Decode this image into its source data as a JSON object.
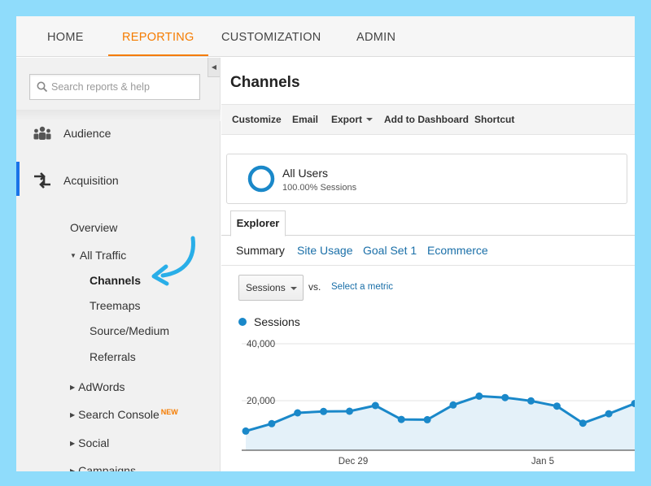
{
  "topnav": {
    "tabs": [
      {
        "label": "HOME",
        "active": false
      },
      {
        "label": "REPORTING",
        "active": true
      },
      {
        "label": "CUSTOMIZATION",
        "active": false
      },
      {
        "label": "ADMIN",
        "active": false
      }
    ]
  },
  "sidebar": {
    "search_placeholder": "Search reports & help",
    "items": [
      {
        "label": "Audience",
        "icon": "audience-icon"
      },
      {
        "label": "Acquisition",
        "icon": "acquisition-icon",
        "active": true
      }
    ],
    "acquisition_children": {
      "overview": "Overview",
      "all_traffic": "All Traffic",
      "channels": "Channels",
      "treemaps": "Treemaps",
      "source_medium": "Source/Medium",
      "referrals": "Referrals",
      "adwords": "AdWords",
      "search_console": "Search Console",
      "search_console_badge": "NEW",
      "social": "Social",
      "campaigns": "Campaigns"
    }
  },
  "main": {
    "title": "Channels",
    "toolbar": {
      "customize": "Customize",
      "email": "Email",
      "export": "Export",
      "add_to_dashboard": "Add to Dashboard",
      "shortcut": "Shortcut"
    },
    "segment": {
      "title": "All Users",
      "subtitle": "100.00% Sessions",
      "percent": 100
    },
    "explorer_tab": "Explorer",
    "subtabs": [
      "Summary",
      "Site Usage",
      "Goal Set 1",
      "Ecommerce"
    ],
    "metric_select": "Sessions",
    "vs_label": "vs.",
    "select_metric_link": "Select a metric",
    "legend_label": "Sessions"
  },
  "colors": {
    "accent_orange": "#f57c00",
    "active_blue": "#1a73e8",
    "series_blue": "#1a88c9",
    "area_fill": "#e4f1f9",
    "background": "#8fdcfb"
  },
  "chart_data": {
    "type": "area",
    "series": [
      {
        "name": "Sessions",
        "values": [
          9300,
          11900,
          15700,
          16200,
          16300,
          18300,
          13400,
          13300,
          18500,
          21600,
          21100,
          19900,
          18100,
          12100,
          15400,
          19000
        ]
      }
    ],
    "y_ticks": [
      "40,000",
      "20,000"
    ],
    "x_ticks": [
      "Dec 29",
      "Jan 5"
    ],
    "ylim": [
      0,
      40000
    ],
    "grid": true
  }
}
